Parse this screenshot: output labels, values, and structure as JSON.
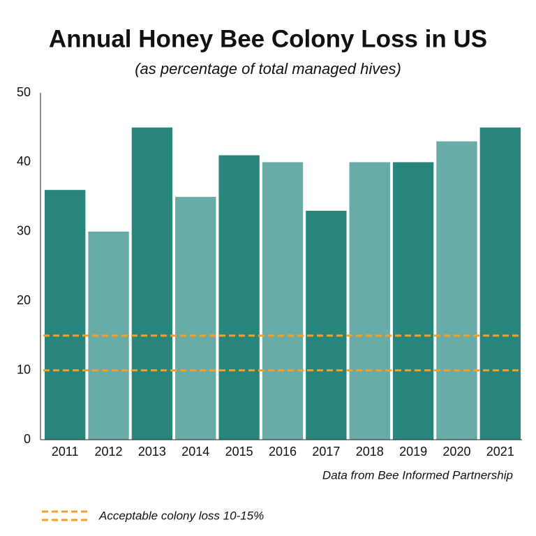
{
  "chart_data": {
    "type": "bar",
    "title": "Annual Honey Bee Colony Loss in US",
    "subtitle": "(as percentage of total managed hives)",
    "categories": [
      "2011",
      "2012",
      "2013",
      "2014",
      "2015",
      "2016",
      "2017",
      "2018",
      "2019",
      "2020",
      "2021"
    ],
    "values": [
      36,
      30,
      45,
      35,
      41,
      40,
      33,
      40,
      40,
      43,
      45
    ],
    "colors": [
      "#28857c",
      "#69aba6",
      "#28857c",
      "#69aba6",
      "#28857c",
      "#69aba6",
      "#28857c",
      "#69aba6",
      "#28857c",
      "#69aba6",
      "#28857c"
    ],
    "ylim": [
      0,
      50
    ],
    "yticks": [
      0,
      10,
      20,
      30,
      40,
      50
    ],
    "grid": false,
    "reference_lines": {
      "values": [
        10,
        15
      ],
      "color": "#f0a030",
      "label": "Acceptable colony loss 10-15%"
    },
    "source": "Data from Bee Informed Partnership"
  }
}
